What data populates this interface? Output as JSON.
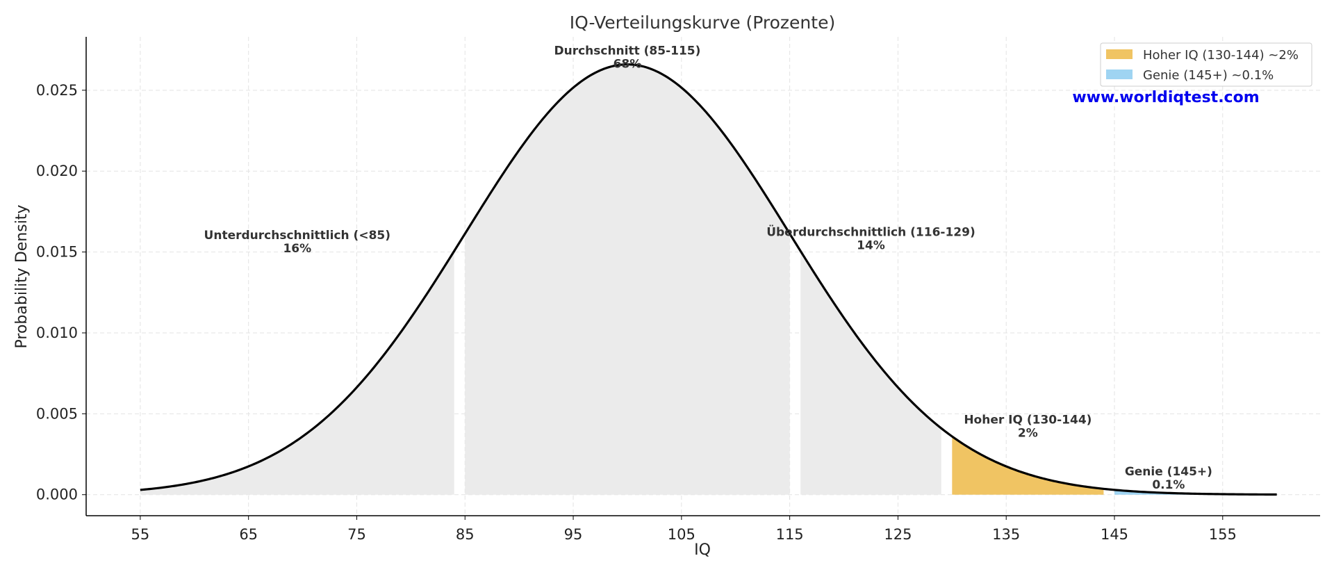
{
  "chart_data": {
    "type": "area",
    "title": "IQ-Verteilungskurve (Prozente)",
    "xlabel": "IQ",
    "ylabel": "Probability Density",
    "xlim": [
      50,
      164
    ],
    "ylim": [
      -0.0013,
      0.0283
    ],
    "x_ticks": [
      "55",
      "65",
      "75",
      "85",
      "95",
      "105",
      "115",
      "125",
      "135",
      "145",
      "155"
    ],
    "y_ticks": [
      "0.000",
      "0.005",
      "0.010",
      "0.015",
      "0.020",
      "0.025"
    ],
    "grid": true,
    "legend_position": "top-right",
    "curve": {
      "type": "normal",
      "mean": 100,
      "sd": 15,
      "x_range": [
        55,
        160
      ],
      "color": "#000000"
    },
    "regions": [
      {
        "label": "Unterdurchschnittlich (<85)",
        "percent": "16%",
        "range": [
          55,
          84
        ],
        "color": "#ebebeb"
      },
      {
        "label": "Durchschnitt (85-115)",
        "percent": "68%",
        "range": [
          85,
          115
        ],
        "color": "#ebebeb"
      },
      {
        "label": "Überdurchschnittlich (116-129)",
        "percent": "14%",
        "range": [
          116,
          129
        ],
        "color": "#ebebeb"
      },
      {
        "label": "Hoher IQ (130-144)",
        "percent": "2%",
        "range": [
          130,
          144
        ],
        "color": "#f0c463"
      },
      {
        "label": "Genie (145+)",
        "percent": "0.1%",
        "range": [
          145,
          160
        ],
        "color": "#9fd4f2"
      }
    ],
    "annotations": [
      {
        "name": "Unterdurchschnittlich (<85)",
        "percent": "16%",
        "x": 69.5,
        "y": 0.0158
      },
      {
        "name": "Durchschnitt (85-115)",
        "percent": "68%",
        "x": 100,
        "y": 0.0272
      },
      {
        "name": "Überdurchschnittlich (116-129)",
        "percent": "14%",
        "x": 122.5,
        "y": 0.016
      },
      {
        "name": "Hoher IQ (130-144)",
        "percent": "2%",
        "x": 137,
        "y": 0.0044
      },
      {
        "name": "Genie (145+)",
        "percent": "0.1%",
        "x": 150,
        "y": 0.0012
      }
    ],
    "legend": [
      {
        "label": "Hoher IQ (130-144) ~2%",
        "color": "#f0c463"
      },
      {
        "label": "Genie (145+) ~0.1%",
        "color": "#9fd4f2"
      }
    ],
    "watermark": "www.worldiqtest.com"
  }
}
